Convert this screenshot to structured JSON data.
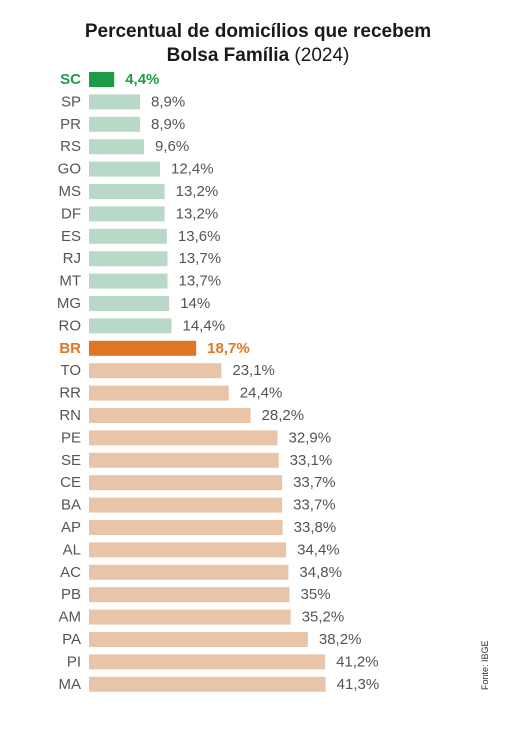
{
  "title": {
    "line1": "Percentual de domicílios que recebem",
    "line2_bold": "Bolsa Família",
    "line2_normal": "(2024)"
  },
  "source": "Fonte: IBGE",
  "colors": {
    "highlight": "#1e9b47",
    "below": "#b8d8c8",
    "average": "#e07623",
    "above": "#e8c5a8",
    "label": "#555555"
  },
  "chart_data": {
    "type": "bar",
    "orientation": "horizontal",
    "unit": "%",
    "categories": [
      "SC",
      "SP",
      "PR",
      "RS",
      "GO",
      "MS",
      "DF",
      "ES",
      "RJ",
      "MT",
      "MG",
      "RO",
      "BR",
      "TO",
      "RR",
      "RN",
      "PE",
      "SE",
      "CE",
      "BA",
      "AP",
      "AL",
      "AC",
      "PB",
      "AM",
      "PA",
      "PI",
      "MA"
    ],
    "values": [
      4.4,
      8.9,
      8.9,
      9.6,
      12.4,
      13.2,
      13.2,
      13.6,
      13.7,
      13.7,
      14,
      14.4,
      18.7,
      23.1,
      24.4,
      28.2,
      32.9,
      33.1,
      33.7,
      33.7,
      33.8,
      34.4,
      34.8,
      35,
      35.2,
      38.2,
      41.2,
      41.3
    ],
    "value_labels": [
      "4,4%",
      "8,9%",
      "8,9%",
      "9,6%",
      "12,4%",
      "13,2%",
      "13,2%",
      "13,6%",
      "13,7%",
      "13,7%",
      "14%",
      "14,4%",
      "18,7%",
      "23,1%",
      "24,4%",
      "28,2%",
      "32,9%",
      "33,1%",
      "33,7%",
      "33,7%",
      "33,8%",
      "34,4%",
      "34,8%",
      "35%",
      "35,2%",
      "38,2%",
      "41,2%",
      "41,3%"
    ],
    "highlighted": [
      "SC",
      "BR"
    ],
    "grid": false,
    "legend": "none"
  }
}
